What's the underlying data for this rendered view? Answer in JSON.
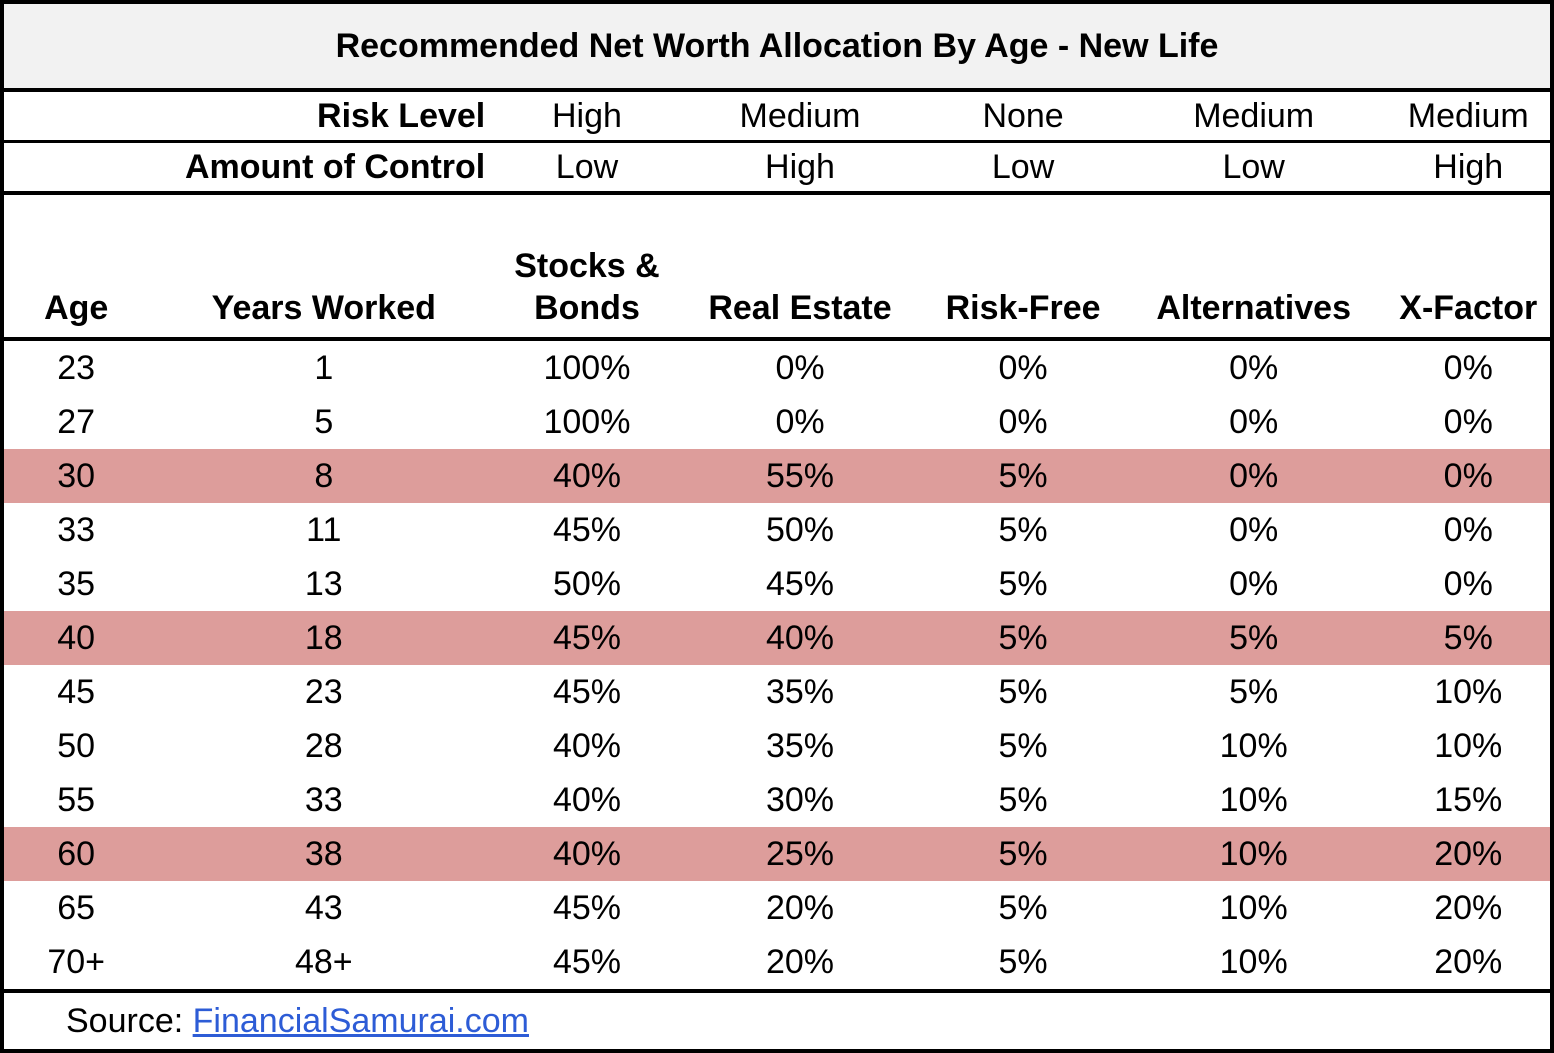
{
  "title": "Recommended Net Worth Allocation By Age - New Life",
  "colors": {
    "highlight_row": "#DD9D9B",
    "title_background": "#F2F2F2",
    "link": "#2D5CD6",
    "border": "#000000"
  },
  "meta_rows": [
    {
      "label": "Risk Level",
      "values": [
        "High",
        "Medium",
        "None",
        "Medium",
        "Medium"
      ]
    },
    {
      "label": "Amount of Control",
      "values": [
        "Low",
        "High",
        "Low",
        "Low",
        "High"
      ]
    }
  ],
  "chart_data": {
    "type": "table",
    "title": "Recommended Net Worth Allocation By Age - New Life",
    "columns": [
      "Age",
      "Years Worked",
      "Stocks & Bonds",
      "Real Estate",
      "Risk-Free",
      "Alternatives",
      "X-Factor"
    ],
    "risk_level_by_column": {
      "Stocks & Bonds": "High",
      "Real Estate": "Medium",
      "Risk-Free": "None",
      "Alternatives": "Medium",
      "X-Factor": "Medium"
    },
    "amount_of_control_by_column": {
      "Stocks & Bonds": "Low",
      "Real Estate": "High",
      "Risk-Free": "Low",
      "Alternatives": "Low",
      "X-Factor": "High"
    },
    "rows": [
      {
        "cells": [
          "23",
          "1",
          "100%",
          "0%",
          "0%",
          "0%",
          "0%"
        ],
        "highlight": false
      },
      {
        "cells": [
          "27",
          "5",
          "100%",
          "0%",
          "0%",
          "0%",
          "0%"
        ],
        "highlight": false
      },
      {
        "cells": [
          "30",
          "8",
          "40%",
          "55%",
          "5%",
          "0%",
          "0%"
        ],
        "highlight": true
      },
      {
        "cells": [
          "33",
          "11",
          "45%",
          "50%",
          "5%",
          "0%",
          "0%"
        ],
        "highlight": false
      },
      {
        "cells": [
          "35",
          "13",
          "50%",
          "45%",
          "5%",
          "0%",
          "0%"
        ],
        "highlight": false
      },
      {
        "cells": [
          "40",
          "18",
          "45%",
          "40%",
          "5%",
          "5%",
          "5%"
        ],
        "highlight": true
      },
      {
        "cells": [
          "45",
          "23",
          "45%",
          "35%",
          "5%",
          "5%",
          "10%"
        ],
        "highlight": false
      },
      {
        "cells": [
          "50",
          "28",
          "40%",
          "35%",
          "5%",
          "10%",
          "10%"
        ],
        "highlight": false
      },
      {
        "cells": [
          "55",
          "33",
          "40%",
          "30%",
          "5%",
          "10%",
          "15%"
        ],
        "highlight": false
      },
      {
        "cells": [
          "60",
          "38",
          "40%",
          "25%",
          "5%",
          "10%",
          "20%"
        ],
        "highlight": true
      },
      {
        "cells": [
          "65",
          "43",
          "45%",
          "20%",
          "5%",
          "10%",
          "20%"
        ],
        "highlight": false
      },
      {
        "cells": [
          "70+",
          "48+",
          "45%",
          "20%",
          "5%",
          "10%",
          "20%"
        ],
        "highlight": false
      }
    ],
    "highlighted_ages": [
      "30",
      "40",
      "60"
    ]
  },
  "footer": {
    "source_label": "Source:",
    "link_text": "FinancialSamurai.com"
  }
}
